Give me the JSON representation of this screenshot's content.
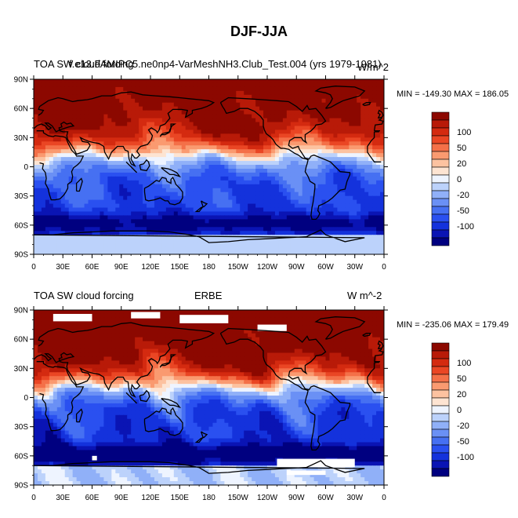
{
  "figure_title": "DJF-JJA",
  "colors": {
    "scale": [
      "#000080",
      "#0a14b4",
      "#1432dc",
      "#2a50f0",
      "#4670f2",
      "#6a90f5",
      "#90b0f8",
      "#bcd2fb",
      "#eef4ff",
      "#fde4d2",
      "#fcc2a0",
      "#fa9a70",
      "#f47048",
      "#ea4624",
      "#d42a10",
      "#b81a08",
      "#8c0800"
    ]
  },
  "legend_labels": [
    "100",
    "50",
    "20",
    "0",
    "-20",
    "-50",
    "-100"
  ],
  "x_ticks": [
    "0",
    "30E",
    "60E",
    "90E",
    "120E",
    "150E",
    "180",
    "150W",
    "120W",
    "90W",
    "60W",
    "30W",
    "0"
  ],
  "y_ticks": [
    "90N",
    "60N",
    "30N",
    "0",
    "30S",
    "60S",
    "90S"
  ],
  "panels": [
    {
      "left_title": "TOA SW cloud forcing",
      "center_title": "f.e13.FAMIPC5.ne0np4-VarMeshNH3.Club_Test.004 (yrs 1979-1981)",
      "right_title": "W/m^2",
      "minmax": "MIN = -149.30 MAX = 186.05"
    },
    {
      "left_title": "TOA SW cloud forcing",
      "center_title": "ERBE",
      "right_title": "W m^-2",
      "minmax": "MIN = -235.06 MAX = 179.49"
    }
  ],
  "chart_data": {
    "type": "heatmap",
    "title": "DJF-JJA",
    "x_range": [
      0,
      360
    ],
    "y_range": [
      -90,
      90
    ],
    "field_range_legend": [
      -100,
      100
    ],
    "contour_levels": [
      -120,
      -100,
      -80,
      -65,
      -50,
      -35,
      -20,
      -10,
      0,
      10,
      20,
      35,
      50,
      65,
      80,
      100,
      120
    ]
  }
}
